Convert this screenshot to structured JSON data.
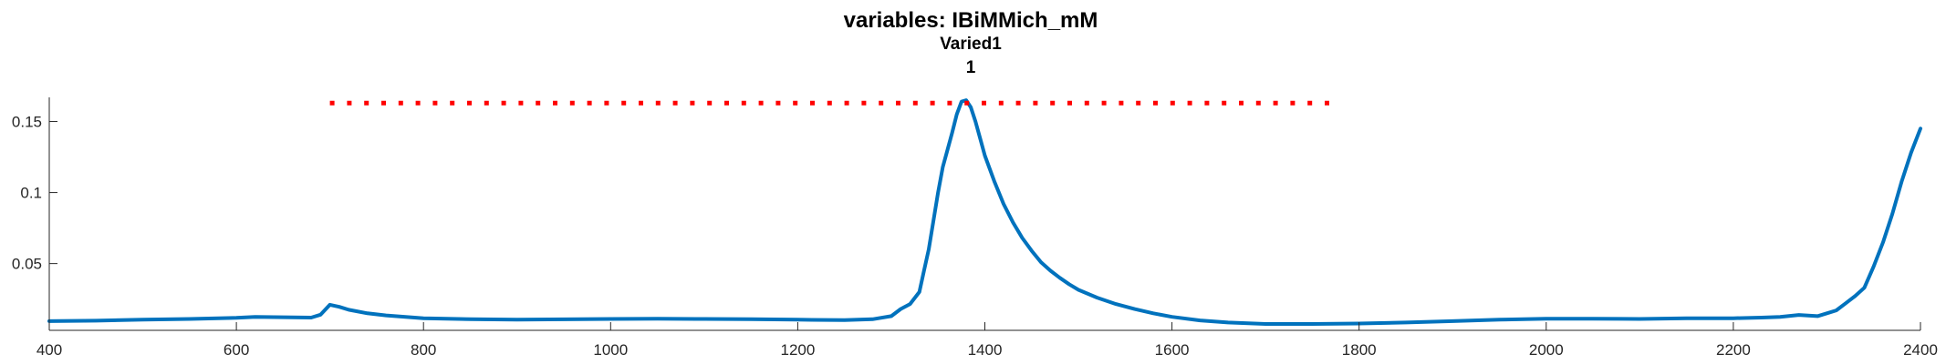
{
  "chart_data": {
    "type": "line",
    "title": "variables: IBiMMich_mM",
    "subtitle": "Varied1",
    "subtitle2": "1",
    "xlabel": "",
    "ylabel": "",
    "xlim": [
      400,
      2400
    ],
    "ylim": [
      0.003,
      0.167
    ],
    "xticks": [
      400,
      600,
      800,
      1000,
      1200,
      1400,
      1600,
      1800,
      2000,
      2200,
      2400
    ],
    "yticks": [
      0.05,
      0.1,
      0.15
    ],
    "ytick_labels": [
      "0.05",
      "0.1",
      "0.15"
    ],
    "grid": false,
    "colors": {
      "series": "#0072BD",
      "reference": "#FF0000",
      "axis": "#262626"
    },
    "series": [
      {
        "style": "solid",
        "x": [
          400,
          450,
          500,
          550,
          600,
          620,
          650,
          680,
          690,
          700,
          710,
          720,
          740,
          760,
          800,
          850,
          900,
          1000,
          1050,
          1100,
          1150,
          1200,
          1250,
          1280,
          1300,
          1310,
          1320,
          1330,
          1335,
          1340,
          1345,
          1350,
          1355,
          1360,
          1365,
          1370,
          1375,
          1380,
          1385,
          1390,
          1395,
          1400,
          1410,
          1420,
          1430,
          1440,
          1450,
          1460,
          1470,
          1480,
          1490,
          1500,
          1520,
          1540,
          1560,
          1580,
          1600,
          1630,
          1660,
          1700,
          1750,
          1800,
          1850,
          1900,
          1950,
          2000,
          2050,
          2100,
          2150,
          2200,
          2230,
          2250,
          2270,
          2290,
          2300,
          2310,
          2320,
          2330,
          2340,
          2350,
          2360,
          2370,
          2380,
          2390,
          2400
        ],
        "y": [
          0.0095,
          0.0098,
          0.0105,
          0.011,
          0.0118,
          0.0125,
          0.0122,
          0.012,
          0.014,
          0.021,
          0.0195,
          0.0175,
          0.015,
          0.0135,
          0.0115,
          0.0108,
          0.0105,
          0.011,
          0.0112,
          0.011,
          0.0108,
          0.0105,
          0.0102,
          0.0108,
          0.013,
          0.018,
          0.0215,
          0.03,
          0.045,
          0.06,
          0.08,
          0.1,
          0.118,
          0.13,
          0.142,
          0.155,
          0.164,
          0.165,
          0.16,
          0.15,
          0.138,
          0.126,
          0.108,
          0.092,
          0.079,
          0.068,
          0.059,
          0.051,
          0.045,
          0.04,
          0.0355,
          0.0315,
          0.026,
          0.0215,
          0.018,
          0.015,
          0.0125,
          0.01,
          0.0085,
          0.0075,
          0.0075,
          0.0078,
          0.0085,
          0.0095,
          0.0105,
          0.0112,
          0.0112,
          0.011,
          0.0115,
          0.0115,
          0.012,
          0.0125,
          0.0138,
          0.013,
          0.015,
          0.017,
          0.022,
          0.027,
          0.033,
          0.048,
          0.065,
          0.085,
          0.108,
          0.128,
          0.145
        ]
      },
      {
        "style": "dotted",
        "x": [
          700,
          1780
        ],
        "y": [
          0.163,
          0.163
        ]
      }
    ]
  }
}
